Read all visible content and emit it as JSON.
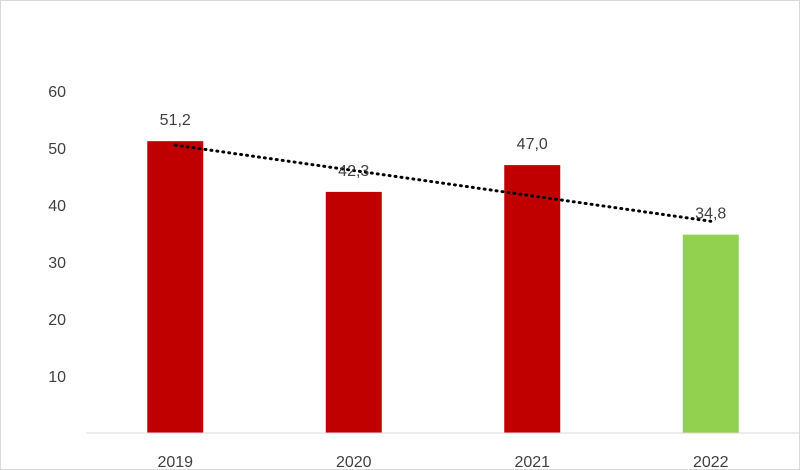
{
  "chart_data": {
    "type": "bar",
    "categories": [
      "2019",
      "2020",
      "2021",
      "2022"
    ],
    "values": [
      51.2,
      42.3,
      47.0,
      34.8
    ],
    "data_labels": [
      "51,2",
      "42,3",
      "47,0",
      "34,8"
    ],
    "y_ticks": [
      "10",
      "20",
      "30",
      "40",
      "50",
      "60"
    ],
    "ylim": [
      0,
      60
    ],
    "bar_colors": [
      "#c00000",
      "#c00000",
      "#c00000",
      "#92d050"
    ],
    "trendline": {
      "type": "linear",
      "style": "dotted",
      "color": "#000000"
    },
    "grid": false,
    "legend": "none",
    "title": "",
    "xlabel": "",
    "ylabel": ""
  }
}
